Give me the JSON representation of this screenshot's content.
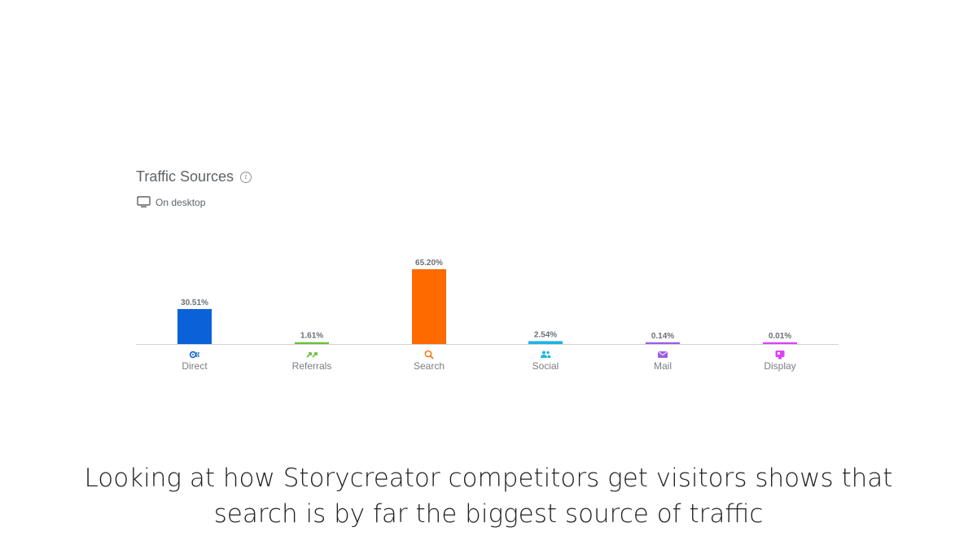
{
  "header": {
    "title": "Traffic Sources",
    "device": "On desktop"
  },
  "chart_data": {
    "type": "bar",
    "categories": [
      "Direct",
      "Referrals",
      "Search",
      "Social",
      "Mail",
      "Display"
    ],
    "values": [
      30.51,
      1.61,
      65.2,
      2.54,
      0.14,
      0.01
    ],
    "labels": [
      "30.51%",
      "1.61%",
      "65.20%",
      "2.54%",
      "0.14%",
      "0.01%"
    ],
    "icons": [
      "direct-icon",
      "referrals-icon",
      "search-icon",
      "social-icon",
      "mail-icon",
      "display-icon"
    ],
    "colors": [
      "#0b61d8",
      "#6bc03b",
      "#ff6a00",
      "#1fb3e6",
      "#9b5de5",
      "#e040fb"
    ],
    "title": "Traffic Sources",
    "xlabel": "",
    "ylabel": "",
    "ylim": [
      0,
      65.2
    ],
    "grid": false,
    "legend": "none"
  },
  "caption": "Looking at how Storycreator competitors get visitors shows that search is by far the biggest source of traffic"
}
